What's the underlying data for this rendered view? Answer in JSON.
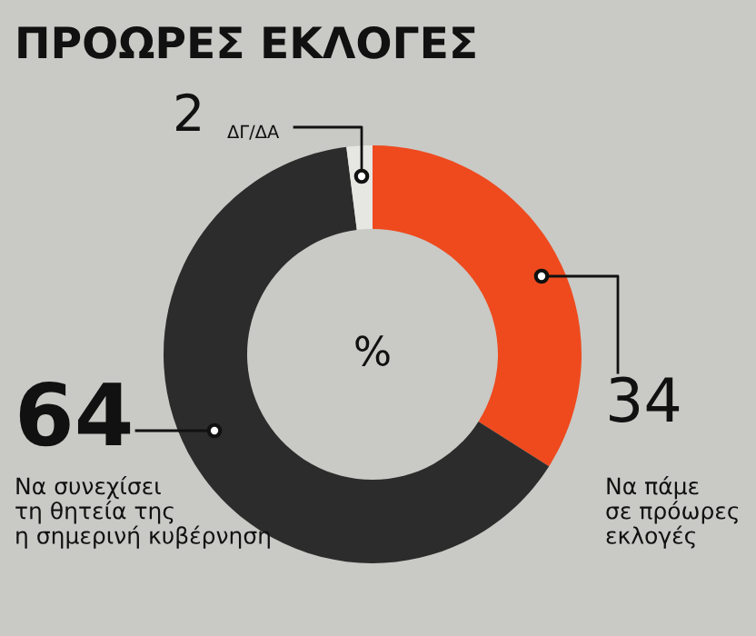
{
  "chart_data": {
    "type": "donut",
    "title": "ΠΡΟΩΡΕΣ ΕΚΛΟΓΕΣ",
    "categories": [
      "Να πάμε\nσε πρόωρες\nεκλογές",
      "Να συνεχίσει\nτη θητεία της\nη σημερινή κυβέρνηση",
      "ΔΓ/ΔΑ"
    ],
    "values": [
      34,
      64,
      2
    ],
    "colors": [
      "#ee4a1e",
      "#2c2c2c",
      "#e6e6e2"
    ],
    "data_labels": true,
    "annotations": [
      "%"
    ]
  }
}
